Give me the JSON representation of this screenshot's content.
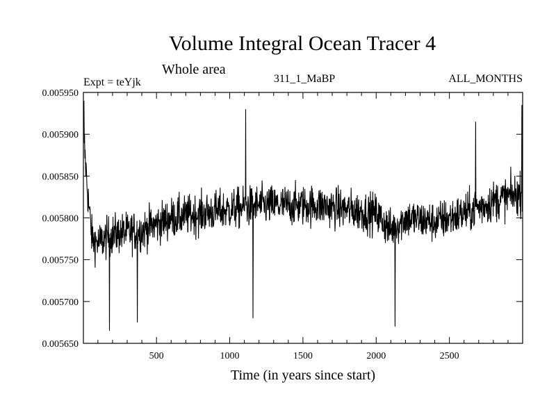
{
  "chart_data": {
    "type": "line",
    "title": "Volume Integral Ocean Tracer 4",
    "subtitle": "Whole area",
    "expt_label": "Expt = teYjk",
    "run_label": "311_1_MaBP",
    "months_label": "ALL_MONTHS",
    "xlabel": "Time (in years since start)",
    "ylabel": "",
    "xlim": [
      1,
      3000
    ],
    "ylim": [
      0.00565,
      0.00595
    ],
    "x_ticks": [
      500,
      1000,
      1500,
      2000,
      2500
    ],
    "x_tick_labels": [
      "500",
      "1000",
      "1500",
      "2000",
      "2500"
    ],
    "y_ticks": [
      0.00565,
      0.0057,
      0.00575,
      0.0058,
      0.00585,
      0.0059,
      0.00595
    ],
    "y_tick_labels": [
      "0.005650",
      "0.005700",
      "0.005750",
      "0.005800",
      "0.005850",
      "0.005900",
      "0.005950"
    ],
    "grid": false,
    "series": [
      {
        "name": "Volume Integral Ocean Tracer 4",
        "color": "#000000",
        "trend_x": [
          1,
          10,
          30,
          60,
          100,
          200,
          400,
          600,
          800,
          1000,
          1200,
          1400,
          1600,
          1800,
          2000,
          2100,
          2200,
          2400,
          2600,
          2800,
          3000
        ],
        "trend_y": [
          0.00592,
          0.00588,
          0.00583,
          0.005775,
          0.00577,
          0.00578,
          0.005785,
          0.0058,
          0.005805,
          0.00581,
          0.005815,
          0.005815,
          0.005815,
          0.00581,
          0.005805,
          0.005785,
          0.0058,
          0.005795,
          0.005805,
          0.00582,
          0.00583
        ],
        "noise_amplitude": 4e-05,
        "extremes": [
          {
            "x": 5,
            "y": 0.00594
          },
          {
            "x": 180,
            "y": 0.005665
          },
          {
            "x": 370,
            "y": 0.005675
          },
          {
            "x": 1110,
            "y": 0.00593
          },
          {
            "x": 1160,
            "y": 0.00568
          },
          {
            "x": 2130,
            "y": 0.00567
          },
          {
            "x": 2680,
            "y": 0.005915
          },
          {
            "x": 2995,
            "y": 0.005935
          }
        ]
      }
    ]
  }
}
